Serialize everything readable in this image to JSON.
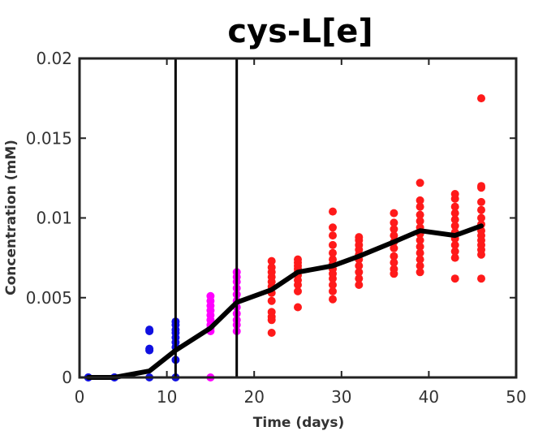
{
  "chart_data": {
    "type": "scatter",
    "title": "cys-L[e]",
    "xlabel": "Time (days)",
    "ylabel": "Concentration (mM)",
    "xlim": [
      0,
      50
    ],
    "ylim": [
      0,
      0.02
    ],
    "xticks": [
      0,
      10,
      20,
      30,
      40,
      50
    ],
    "xtick_labels": [
      "0",
      "10",
      "20",
      "30",
      "40",
      "50"
    ],
    "yticks": [
      0,
      0.005,
      0.01,
      0.015,
      0.02
    ],
    "ytick_labels": [
      "0",
      "0.005",
      "0.01",
      "0.015",
      "0.02"
    ],
    "grid": false,
    "legend": "none",
    "vertical_lines": [
      11,
      18
    ],
    "colors": {
      "phase1": "#1010e0",
      "phase2": "#ff00ff",
      "phase3": "#ff1a1a",
      "mean_line": "#000000",
      "vlines": "#000000"
    },
    "mean_line": {
      "x": [
        1,
        4,
        8,
        11,
        15,
        18,
        22,
        25,
        29,
        32,
        36,
        39,
        43,
        46
      ],
      "y": [
        0.0,
        0.0,
        0.0004,
        0.0017,
        0.0031,
        0.0047,
        0.0055,
        0.0066,
        0.007,
        0.0076,
        0.0085,
        0.0092,
        0.0089,
        0.0095
      ]
    },
    "series": [
      {
        "color_key": "phase1",
        "points": [
          [
            1,
            0.0
          ],
          [
            1,
            0.0
          ],
          [
            4,
            0.0
          ],
          [
            4,
            0.0
          ],
          [
            8,
            0.0
          ],
          [
            8,
            0.0017
          ],
          [
            8,
            0.0018
          ],
          [
            8,
            0.0029
          ],
          [
            8,
            0.003
          ],
          [
            11,
            0.0
          ],
          [
            11,
            0.0011
          ],
          [
            11,
            0.0019
          ],
          [
            11,
            0.0022
          ],
          [
            11,
            0.0025
          ],
          [
            11,
            0.0028
          ],
          [
            11,
            0.003
          ],
          [
            11,
            0.0033
          ],
          [
            11,
            0.0035
          ]
        ]
      },
      {
        "color_key": "phase2",
        "points": [
          [
            15,
            0.0
          ],
          [
            15,
            0.0029
          ],
          [
            15,
            0.0031
          ],
          [
            15,
            0.0033
          ],
          [
            15,
            0.0036
          ],
          [
            15,
            0.0039
          ],
          [
            15,
            0.0042
          ],
          [
            15,
            0.0045
          ],
          [
            15,
            0.0048
          ],
          [
            15,
            0.0051
          ],
          [
            18,
            0.0029
          ],
          [
            18,
            0.0033
          ],
          [
            18,
            0.0036
          ],
          [
            18,
            0.004
          ],
          [
            18,
            0.0044
          ],
          [
            18,
            0.0048
          ],
          [
            18,
            0.0052
          ],
          [
            18,
            0.0056
          ],
          [
            18,
            0.006
          ],
          [
            18,
            0.0063
          ],
          [
            18,
            0.0066
          ]
        ]
      },
      {
        "color_key": "phase3",
        "points": [
          [
            22,
            0.0028
          ],
          [
            22,
            0.0036
          ],
          [
            22,
            0.0038
          ],
          [
            22,
            0.0041
          ],
          [
            22,
            0.0048
          ],
          [
            22,
            0.0053
          ],
          [
            22,
            0.0057
          ],
          [
            22,
            0.006
          ],
          [
            22,
            0.0063
          ],
          [
            22,
            0.0066
          ],
          [
            22,
            0.0069
          ],
          [
            22,
            0.0073
          ],
          [
            25,
            0.0044
          ],
          [
            25,
            0.0054
          ],
          [
            25,
            0.0058
          ],
          [
            25,
            0.0061
          ],
          [
            25,
            0.0064
          ],
          [
            25,
            0.0066
          ],
          [
            25,
            0.0068
          ],
          [
            25,
            0.007
          ],
          [
            25,
            0.0072
          ],
          [
            25,
            0.0074
          ],
          [
            29,
            0.0049
          ],
          [
            29,
            0.0054
          ],
          [
            29,
            0.0058
          ],
          [
            29,
            0.0062
          ],
          [
            29,
            0.0065
          ],
          [
            29,
            0.0068
          ],
          [
            29,
            0.0071
          ],
          [
            29,
            0.0074
          ],
          [
            29,
            0.0078
          ],
          [
            29,
            0.0083
          ],
          [
            29,
            0.0089
          ],
          [
            29,
            0.0094
          ],
          [
            29,
            0.0104
          ],
          [
            32,
            0.0058
          ],
          [
            32,
            0.0062
          ],
          [
            32,
            0.0066
          ],
          [
            32,
            0.007
          ],
          [
            32,
            0.0074
          ],
          [
            32,
            0.0077
          ],
          [
            32,
            0.008
          ],
          [
            32,
            0.0083
          ],
          [
            32,
            0.0086
          ],
          [
            32,
            0.0088
          ],
          [
            36,
            0.0065
          ],
          [
            36,
            0.0068
          ],
          [
            36,
            0.0072
          ],
          [
            36,
            0.0076
          ],
          [
            36,
            0.0081
          ],
          [
            36,
            0.0085
          ],
          [
            36,
            0.0089
          ],
          [
            36,
            0.0093
          ],
          [
            36,
            0.0097
          ],
          [
            36,
            0.0103
          ],
          [
            39,
            0.0066
          ],
          [
            39,
            0.007
          ],
          [
            39,
            0.0074
          ],
          [
            39,
            0.0078
          ],
          [
            39,
            0.0082
          ],
          [
            39,
            0.0086
          ],
          [
            39,
            0.009
          ],
          [
            39,
            0.0094
          ],
          [
            39,
            0.0098
          ],
          [
            39,
            0.0102
          ],
          [
            39,
            0.0107
          ],
          [
            39,
            0.0111
          ],
          [
            39,
            0.0122
          ],
          [
            43,
            0.0062
          ],
          [
            43,
            0.0075
          ],
          [
            43,
            0.0079
          ],
          [
            43,
            0.0083
          ],
          [
            43,
            0.0087
          ],
          [
            43,
            0.0091
          ],
          [
            43,
            0.0095
          ],
          [
            43,
            0.0099
          ],
          [
            43,
            0.0103
          ],
          [
            43,
            0.0107
          ],
          [
            43,
            0.0112
          ],
          [
            43,
            0.0115
          ],
          [
            46,
            0.0062
          ],
          [
            46,
            0.0077
          ],
          [
            46,
            0.008
          ],
          [
            46,
            0.0083
          ],
          [
            46,
            0.0086
          ],
          [
            46,
            0.0089
          ],
          [
            46,
            0.0092
          ],
          [
            46,
            0.0096
          ],
          [
            46,
            0.01
          ],
          [
            46,
            0.0105
          ],
          [
            46,
            0.011
          ],
          [
            46,
            0.0119
          ],
          [
            46,
            0.012
          ],
          [
            46,
            0.0175
          ]
        ]
      }
    ]
  }
}
